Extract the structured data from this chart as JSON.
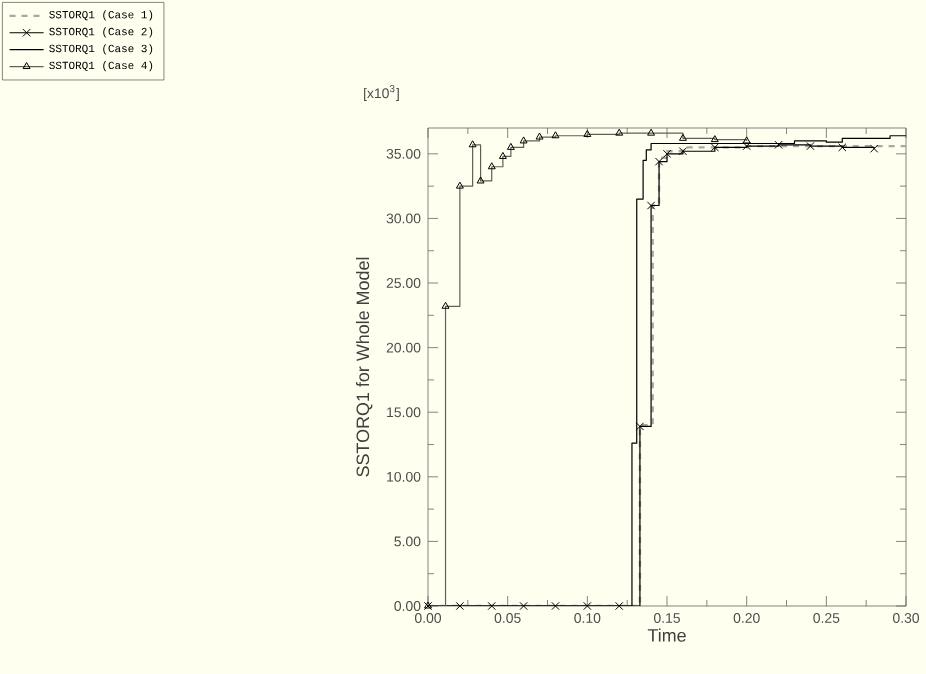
{
  "chart_data": {
    "type": "step",
    "xlabel": "Time",
    "ylabel": "SSTORQ1   for  Whole  Model",
    "annotations": [
      "[x10$^{3}$]"
    ],
    "xlim": [
      0,
      0.3
    ],
    "ylim": [
      0,
      37
    ],
    "xticks": [
      {
        "value": 0,
        "label": "0.00"
      },
      {
        "value": 0.05,
        "label": "0.05"
      },
      {
        "value": 0.1,
        "label": "0.10"
      },
      {
        "value": 0.15,
        "label": "0.15"
      },
      {
        "value": 0.2,
        "label": "0.20"
      },
      {
        "value": 0.25,
        "label": "0.25"
      },
      {
        "value": 0.3,
        "label": "0.30"
      }
    ],
    "yticks": [
      {
        "value": 0,
        "label": "0.00"
      },
      {
        "value": 5,
        "label": "5.00"
      },
      {
        "value": 10,
        "label": "10.00"
      },
      {
        "value": 15,
        "label": "15.00"
      },
      {
        "value": 20,
        "label": "20.00"
      },
      {
        "value": 25,
        "label": "25.00"
      },
      {
        "value": 30,
        "label": "30.00"
      },
      {
        "value": 35,
        "label": "35.00"
      }
    ],
    "legend": "top left",
    "series": [
      {
        "name": "SSTORQ1 (Case 1)",
        "color": "#a8a8a0",
        "line_style": "dashed",
        "marker": "none",
        "x": [
          0,
          0.133,
          0.141,
          0.145,
          0.15,
          0.16,
          0.2,
          0.3
        ],
        "values": [
          0,
          14,
          31,
          34.7,
          35.2,
          35.5,
          35.6,
          35.6
        ]
      },
      {
        "name": "SSTORQ1 (Case 2)",
        "color": "#000000",
        "line_style": "solid",
        "marker": "cross",
        "x": [
          0,
          0.02,
          0.04,
          0.06,
          0.08,
          0.1,
          0.12,
          0.133,
          0.14,
          0.145,
          0.15,
          0.16,
          0.18,
          0.2,
          0.22,
          0.24,
          0.26,
          0.28
        ],
        "values": [
          0,
          0,
          0,
          0,
          0,
          0,
          0,
          13.9,
          31,
          34.4,
          35,
          35.2,
          35.5,
          35.6,
          35.7,
          35.6,
          35.5,
          35.4
        ]
      },
      {
        "name": "SSTORQ1 (Case 3)",
        "color": "#000000",
        "line_style": "solid",
        "marker": "none",
        "x": [
          0,
          0.128,
          0.131,
          0.135,
          0.137,
          0.14,
          0.23,
          0.25,
          0.26,
          0.29,
          0.3
        ],
        "values": [
          0,
          12.6,
          31.5,
          34.5,
          35.3,
          35.8,
          36,
          35.9,
          36.2,
          36.4,
          36.4
        ]
      },
      {
        "name": "SSTORQ1 (Case 4)",
        "color": "#606058",
        "line_style": "solid",
        "marker": "triangle",
        "x": [
          0,
          0.011,
          0.02,
          0.028,
          0.033,
          0.04,
          0.047,
          0.052,
          0.06,
          0.07,
          0.08,
          0.1,
          0.12,
          0.14,
          0.16,
          0.18,
          0.2
        ],
        "values": [
          0,
          23.2,
          32.5,
          35.7,
          32.9,
          34,
          34.8,
          35.5,
          36,
          36.3,
          36.4,
          36.5,
          36.6,
          36.6,
          36.2,
          36.1,
          36
        ]
      }
    ]
  }
}
